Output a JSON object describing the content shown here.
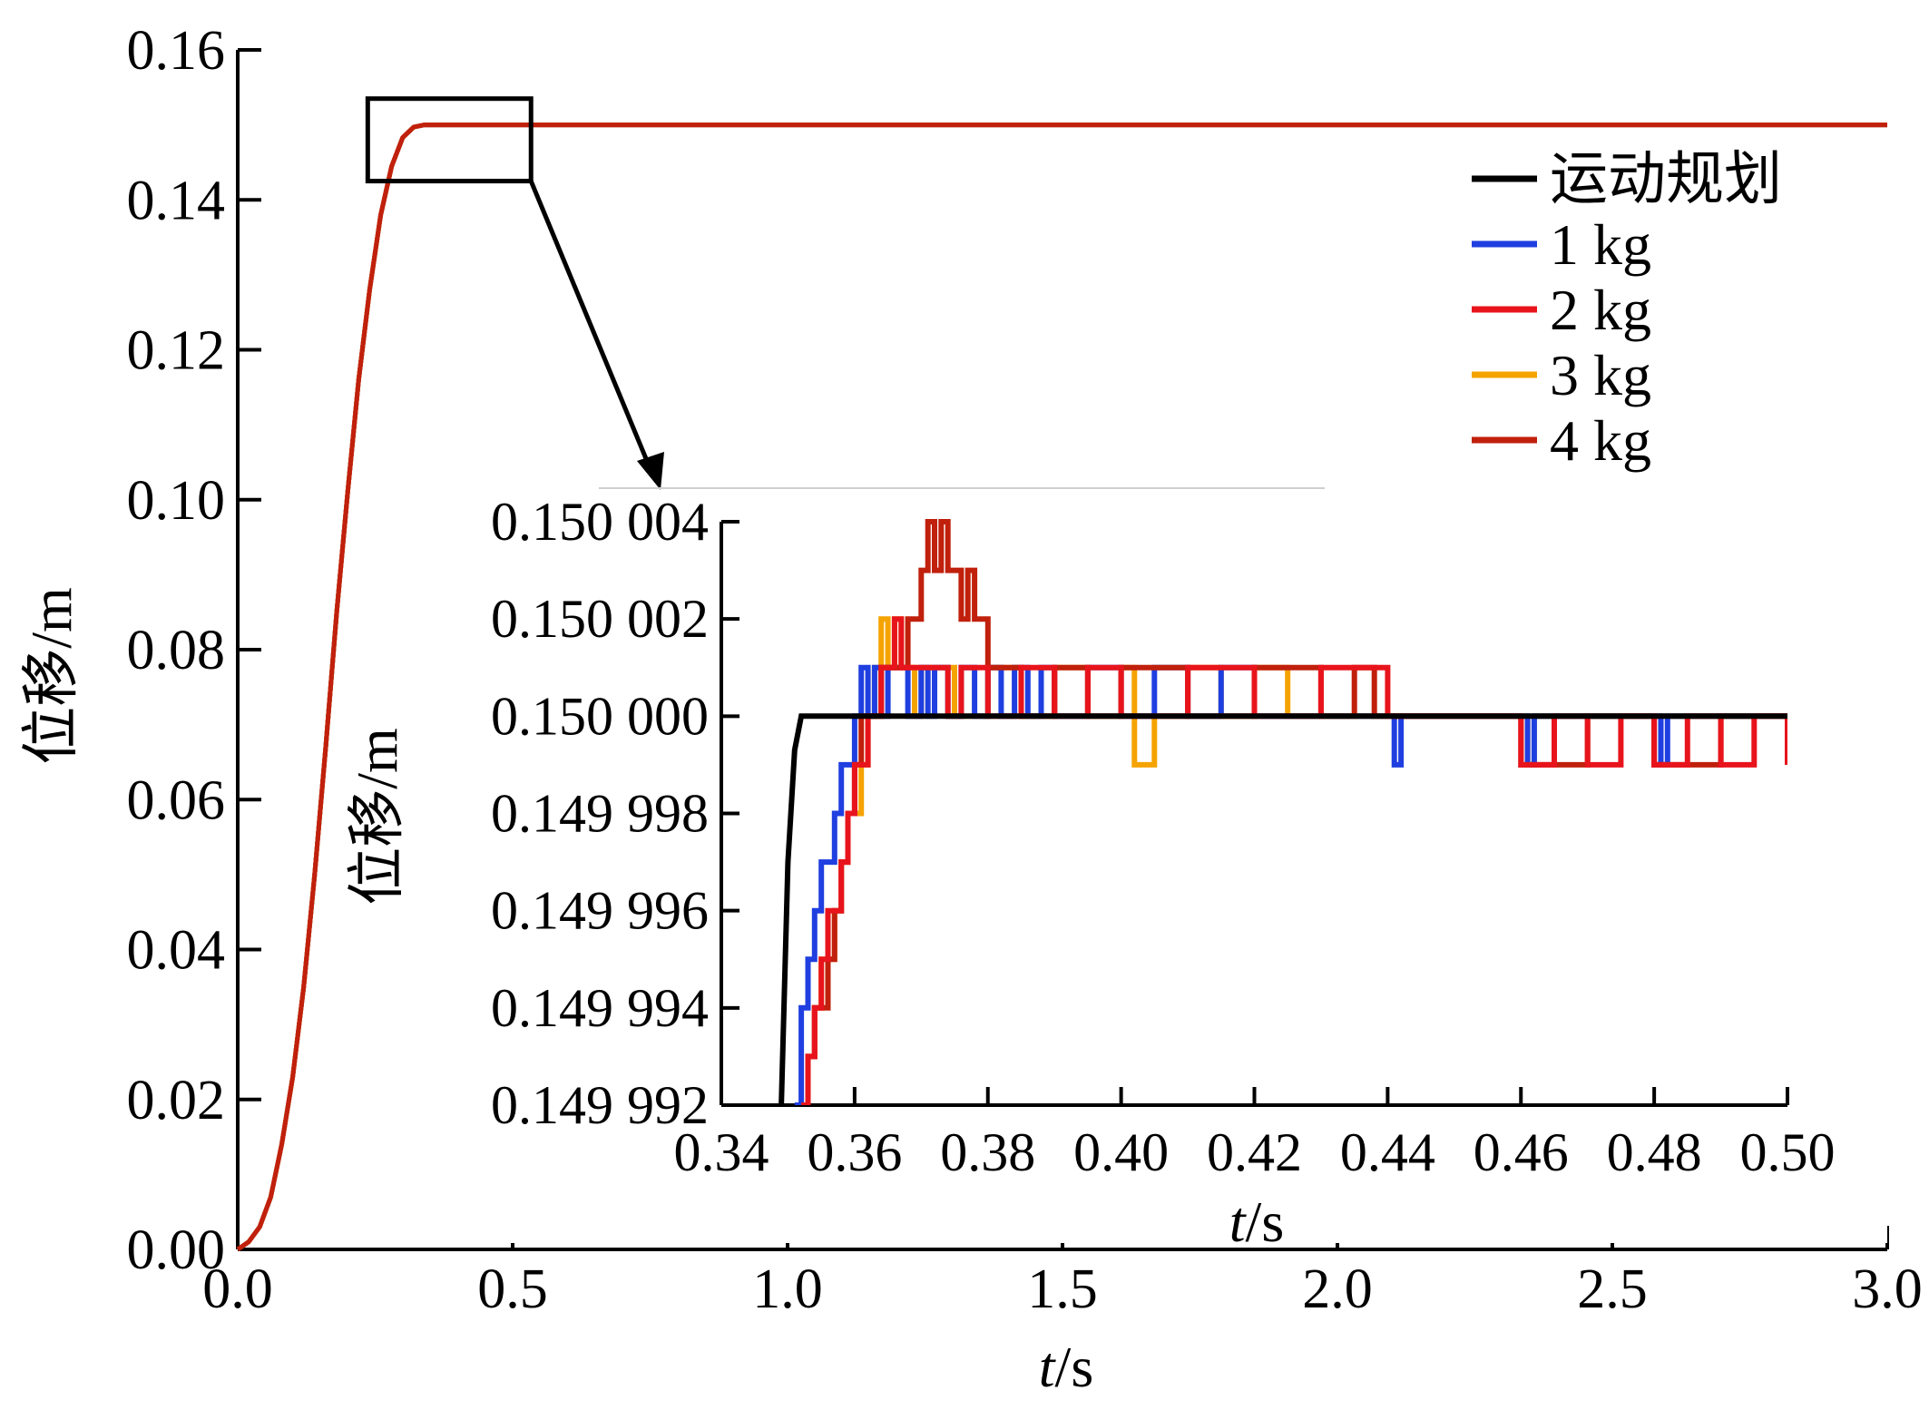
{
  "chart_data": [
    {
      "type": "line",
      "xlabel_italic": "t",
      "xlabel_unit": "/s",
      "ylabel": "位移/m",
      "xlim": [
        0.0,
        3.0
      ],
      "ylim": [
        0.0,
        0.16
      ],
      "xticks": [
        "0.0",
        "0.5",
        "1.0",
        "1.5",
        "2.0",
        "2.5",
        "3.0"
      ],
      "yticks": [
        "0.00",
        "0.02",
        "0.04",
        "0.06",
        "0.08",
        "0.10",
        "0.12",
        "0.14",
        "0.16"
      ],
      "legend_position": "top-right",
      "series": [
        {
          "name": "运动规划",
          "color": "#000000"
        },
        {
          "name": "1 kg",
          "color": "#1f3fe0"
        },
        {
          "name": "2 kg",
          "color": "#e8141c"
        },
        {
          "name": "3 kg",
          "color": "#f5a300"
        },
        {
          "name": "4 kg",
          "color": "#c0200c"
        }
      ],
      "curve": {
        "x": [
          0.0,
          0.02,
          0.04,
          0.06,
          0.08,
          0.1,
          0.12,
          0.14,
          0.16,
          0.18,
          0.2,
          0.22,
          0.24,
          0.26,
          0.28,
          0.3,
          0.32,
          0.34,
          0.36,
          0.4,
          1.0,
          2.0,
          3.0
        ],
        "y": [
          0.0,
          0.001,
          0.003,
          0.007,
          0.014,
          0.023,
          0.035,
          0.05,
          0.067,
          0.085,
          0.101,
          0.116,
          0.128,
          0.138,
          0.1445,
          0.1483,
          0.1497,
          0.15,
          0.15,
          0.15,
          0.15,
          0.15,
          0.15
        ]
      },
      "zoom_box": {
        "x": [
          0.22,
          0.54
        ],
        "y": [
          0.1425,
          0.1535
        ]
      }
    },
    {
      "type": "line",
      "role": "inset",
      "xlabel_italic": "t",
      "xlabel_unit": "/s",
      "ylabel": "位移/m",
      "xlim": [
        0.34,
        0.5
      ],
      "ylim": [
        0.149992,
        0.150004
      ],
      "xticks": [
        "0.34",
        "0.36",
        "0.38",
        "0.40",
        "0.42",
        "0.44",
        "0.46",
        "0.48",
        "0.50"
      ],
      "yticks": [
        "0.149 992",
        "0.149 994",
        "0.149 996",
        "0.149 998",
        "0.150 000",
        "0.150 002",
        "0.150 004"
      ],
      "series": [
        {
          "name": "运动规划",
          "color": "#000000",
          "x": [
            0.349,
            0.35,
            0.351,
            0.352,
            0.353,
            0.5
          ],
          "y": [
            0.149992,
            0.149997,
            0.1499993,
            0.15,
            0.15,
            0.15
          ]
        },
        {
          "name": "1 kg",
          "color": "#1f3fe0",
          "x": [
            0.351,
            0.352,
            0.353,
            0.354,
            0.355,
            0.356,
            0.357,
            0.358,
            0.359,
            0.36,
            0.361,
            0.362,
            0.363,
            0.364,
            0.365,
            0.366,
            0.368,
            0.37,
            0.371,
            0.372,
            0.374,
            0.376,
            0.378,
            0.38,
            0.382,
            0.384,
            0.386,
            0.388,
            0.39,
            0.395,
            0.4,
            0.405,
            0.41,
            0.415,
            0.42,
            0.425,
            0.43,
            0.44,
            0.441,
            0.442,
            0.45,
            0.46,
            0.461,
            0.462,
            0.47,
            0.48,
            0.481,
            0.482,
            0.49,
            0.5
          ],
          "y": [
            0.149992,
            0.149994,
            0.149995,
            0.149996,
            0.149997,
            0.149997,
            0.149998,
            0.149999,
            0.149999,
            0.15,
            0.150001,
            0.15,
            0.150001,
            0.15,
            0.150001,
            0.150001,
            0.15,
            0.150001,
            0.15,
            0.150001,
            0.15,
            0.150001,
            0.15,
            0.150001,
            0.15,
            0.150001,
            0.15,
            0.150001,
            0.15,
            0.150001,
            0.15,
            0.150001,
            0.15,
            0.150001,
            0.15,
            0.15,
            0.15,
            0.15,
            0.149999,
            0.15,
            0.15,
            0.15,
            0.149999,
            0.15,
            0.15,
            0.15,
            0.149999,
            0.15,
            0.15,
            0.15
          ]
        },
        {
          "name": "2 kg",
          "color": "#e8141c",
          "x": [
            0.352,
            0.353,
            0.354,
            0.355,
            0.356,
            0.357,
            0.358,
            0.359,
            0.36,
            0.361,
            0.362,
            0.363,
            0.364,
            0.365,
            0.366,
            0.367,
            0.368,
            0.37,
            0.372,
            0.374,
            0.376,
            0.38,
            0.385,
            0.39,
            0.395,
            0.4,
            0.41,
            0.42,
            0.43,
            0.44,
            0.445,
            0.46,
            0.465,
            0.47,
            0.475,
            0.48,
            0.485,
            0.49,
            0.495,
            0.5
          ],
          "y": [
            0.149992,
            0.149993,
            0.149994,
            0.149995,
            0.149996,
            0.149996,
            0.149997,
            0.149998,
            0.149999,
            0.149999,
            0.15,
            0.15,
            0.150001,
            0.150001,
            0.150002,
            0.150001,
            0.150001,
            0.150001,
            0.150001,
            0.15,
            0.150001,
            0.15,
            0.150001,
            0.15,
            0.150001,
            0.15,
            0.150001,
            0.15,
            0.150001,
            0.15,
            0.15,
            0.149999,
            0.15,
            0.149999,
            0.15,
            0.149999,
            0.15,
            0.149999,
            0.15,
            0.149999
          ]
        },
        {
          "name": "3 kg",
          "color": "#f5a300",
          "x": [
            0.352,
            0.353,
            0.354,
            0.355,
            0.356,
            0.357,
            0.358,
            0.359,
            0.36,
            0.361,
            0.362,
            0.363,
            0.364,
            0.365,
            0.366,
            0.367,
            0.368,
            0.369,
            0.37,
            0.372,
            0.375,
            0.38,
            0.385,
            0.39,
            0.395,
            0.4,
            0.402,
            0.405,
            0.41,
            0.415,
            0.42,
            0.425,
            0.44,
            0.46,
            0.461,
            0.462,
            0.47,
            0.48,
            0.5
          ],
          "y": [
            0.149992,
            0.149993,
            0.149994,
            0.149995,
            0.149995,
            0.149996,
            0.149997,
            0.149998,
            0.149998,
            0.149999,
            0.15,
            0.150001,
            0.150002,
            0.150001,
            0.150002,
            0.150001,
            0.150001,
            0.15,
            0.150001,
            0.150001,
            0.15,
            0.150001,
            0.15,
            0.150001,
            0.15,
            0.150001,
            0.149999,
            0.15,
            0.150001,
            0.15,
            0.150001,
            0.15,
            0.15,
            0.15,
            0.149999,
            0.15,
            0.15,
            0.15,
            0.15
          ]
        },
        {
          "name": "4 kg",
          "color": "#c0200c",
          "x": [
            0.352,
            0.353,
            0.354,
            0.355,
            0.356,
            0.357,
            0.358,
            0.359,
            0.36,
            0.361,
            0.362,
            0.364,
            0.366,
            0.368,
            0.37,
            0.371,
            0.372,
            0.373,
            0.374,
            0.375,
            0.376,
            0.377,
            0.378,
            0.379,
            0.38,
            0.382,
            0.385,
            0.39,
            0.395,
            0.4,
            0.41,
            0.42,
            0.43,
            0.435,
            0.438,
            0.44,
            0.45,
            0.46,
            0.47,
            0.48,
            0.49,
            0.5
          ],
          "y": [
            0.149992,
            0.149993,
            0.149994,
            0.149994,
            0.149995,
            0.149996,
            0.149997,
            0.149998,
            0.149999,
            0.15,
            0.15,
            0.150001,
            0.150001,
            0.150002,
            0.150003,
            0.150004,
            0.150003,
            0.150004,
            0.150003,
            0.150003,
            0.150002,
            0.150003,
            0.150002,
            0.150002,
            0.150001,
            0.150001,
            0.15,
            0.150001,
            0.15,
            0.150001,
            0.15,
            0.150001,
            0.15,
            0.150001,
            0.15,
            0.15,
            0.15,
            0.149999,
            0.15,
            0.149999,
            0.15,
            0.149999
          ]
        }
      ]
    }
  ]
}
